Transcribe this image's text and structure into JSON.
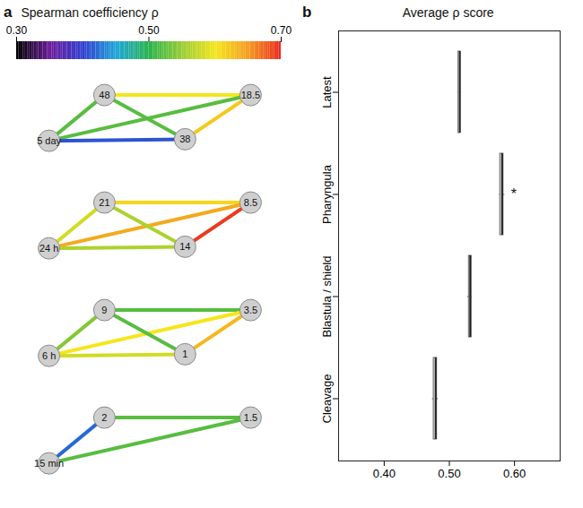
{
  "chart_data": [
    {
      "type": "network",
      "panel": "a",
      "title": "Spearman coefficiency ρ",
      "colorbar": {
        "range": [
          0.3,
          0.7
        ],
        "ticks": [
          0.3,
          0.5,
          0.7
        ]
      },
      "rows": [
        {
          "nodes": [
            "48",
            "5 day",
            "38",
            "18.5"
          ],
          "edges": [
            {
              "source": 0,
              "target": 3,
              "rho": 0.6
            },
            {
              "source": 0,
              "target": 1,
              "rho": 0.52
            },
            {
              "source": 0,
              "target": 2,
              "rho": 0.52
            },
            {
              "source": 1,
              "target": 3,
              "rho": 0.52
            },
            {
              "source": 1,
              "target": 2,
              "rho": 0.41
            },
            {
              "source": 2,
              "target": 3,
              "rho": 0.62
            }
          ]
        },
        {
          "nodes": [
            "21",
            "24 h",
            "14",
            "8.5"
          ],
          "edges": [
            {
              "source": 0,
              "target": 3,
              "rho": 0.61
            },
            {
              "source": 0,
              "target": 1,
              "rho": 0.58
            },
            {
              "source": 1,
              "target": 3,
              "rho": 0.64
            },
            {
              "source": 1,
              "target": 2,
              "rho": 0.56
            },
            {
              "source": 0,
              "target": 2,
              "rho": 0.56
            },
            {
              "source": 2,
              "target": 3,
              "rho": 0.69
            }
          ]
        },
        {
          "nodes": [
            "9",
            "6 h",
            "1",
            "3.5"
          ],
          "edges": [
            {
              "source": 0,
              "target": 3,
              "rho": 0.52
            },
            {
              "source": 0,
              "target": 1,
              "rho": 0.54
            },
            {
              "source": 1,
              "target": 3,
              "rho": 0.6
            },
            {
              "source": 1,
              "target": 2,
              "rho": 0.58
            },
            {
              "source": 0,
              "target": 2,
              "rho": 0.52
            },
            {
              "source": 2,
              "target": 3,
              "rho": 0.63
            }
          ]
        },
        {
          "nodes": [
            "2",
            "15 min",
            null,
            "1.5"
          ],
          "edges": [
            {
              "source": 0,
              "target": 1,
              "rho": 0.42
            },
            {
              "source": 0,
              "target": 3,
              "rho": 0.52
            },
            {
              "source": 1,
              "target": 3,
              "rho": 0.52
            }
          ]
        }
      ]
    },
    {
      "type": "box",
      "panel": "b",
      "title": "Average ρ score",
      "orientation": "horizontal",
      "categories": [
        "Latest",
        "Pharyngula",
        "Blastula / shield",
        "Cleavage"
      ],
      "boxes": [
        {
          "min": 0.513,
          "q1": 0.514,
          "median": 0.516,
          "q3": 0.517,
          "max": 0.518
        },
        {
          "min": 0.577,
          "q1": 0.578,
          "median": 0.581,
          "q3": 0.583,
          "max": 0.585
        },
        {
          "min": 0.528,
          "q1": 0.53,
          "median": 0.532,
          "q3": 0.534,
          "max": 0.535
        },
        {
          "min": 0.474,
          "q1": 0.476,
          "median": 0.479,
          "q3": 0.481,
          "max": 0.483
        }
      ],
      "xlim": [
        0.33,
        0.67
      ],
      "xticks": [
        0.4,
        0.5,
        0.6
      ],
      "annotations": [
        {
          "category": "Pharyngula",
          "text": "*"
        }
      ]
    }
  ]
}
